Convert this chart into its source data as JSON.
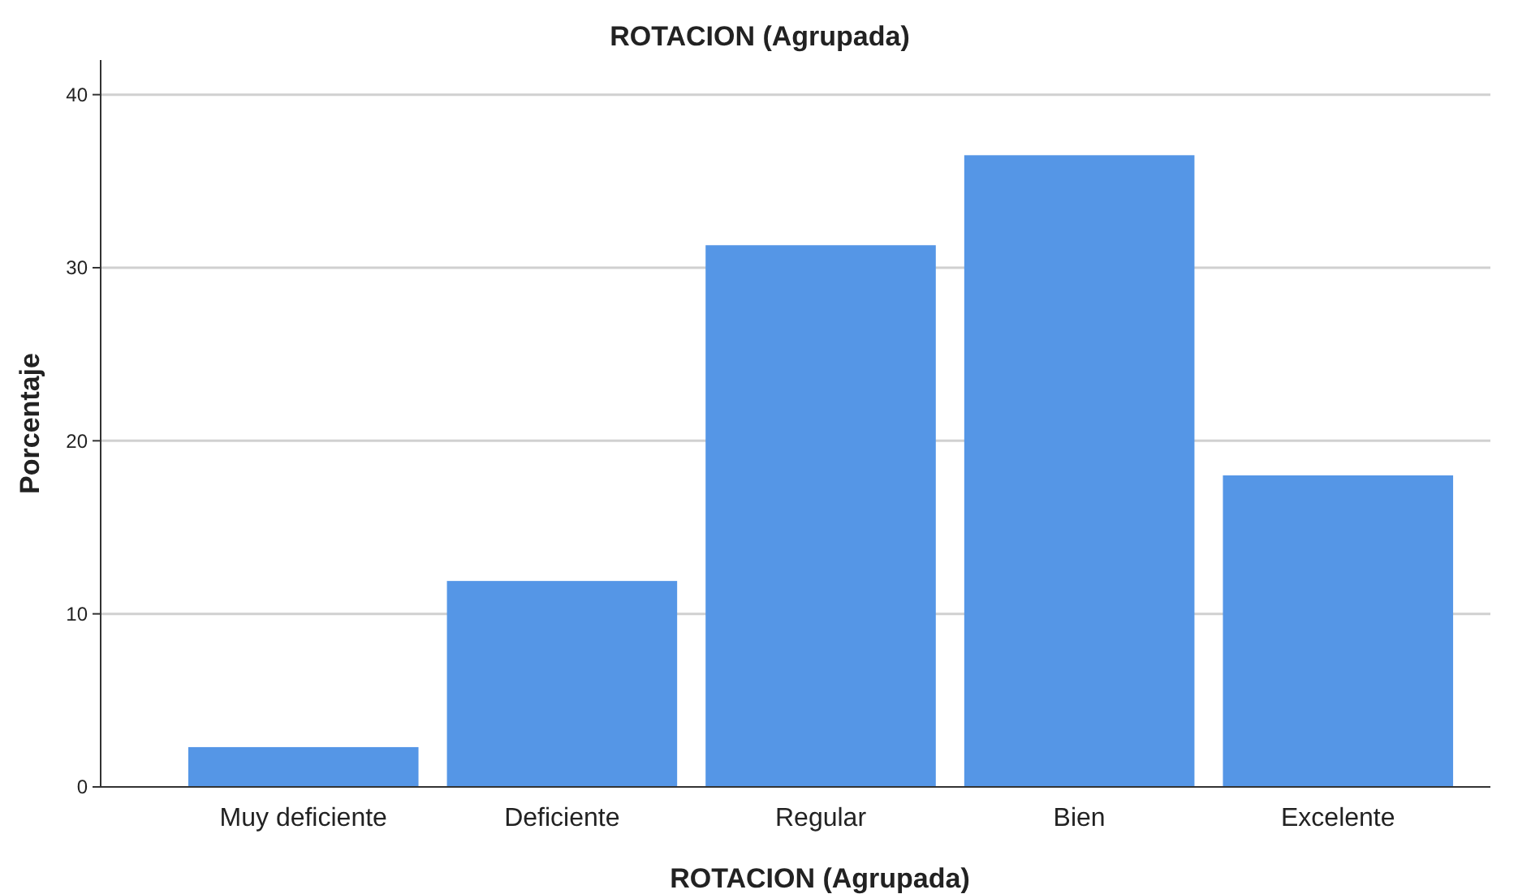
{
  "chart_data": {
    "type": "bar",
    "title": "ROTACION (Agrupada)",
    "xlabel": "ROTACION (Agrupada)",
    "ylabel": "Porcentaje",
    "categories": [
      "Muy deficiente",
      "Deficiente",
      "Regular",
      "Bien",
      "Excelente"
    ],
    "values": [
      2.3,
      11.9,
      31.3,
      36.5,
      18.0
    ],
    "color": "#5596e6",
    "ylim": [
      0,
      42
    ],
    "yticks": [
      0,
      10,
      20,
      30,
      40
    ],
    "grid": "y"
  }
}
